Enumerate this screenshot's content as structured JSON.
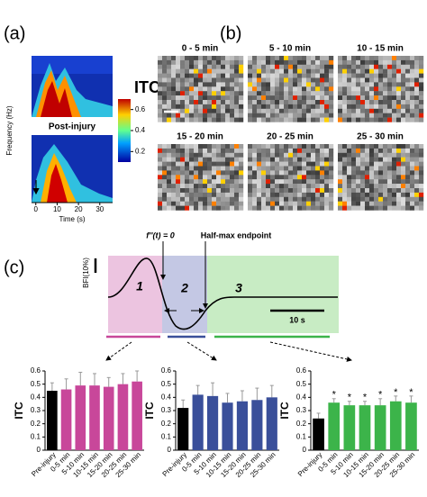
{
  "panel_labels": [
    "(a)",
    "(b)",
    "(c)"
  ],
  "panel_a": {
    "post_label": "Post-injury",
    "y_label": "Frequency (Hz)",
    "x_label": "Time (s)",
    "xlim": [
      -2,
      36
    ],
    "xticks": [
      0,
      10,
      20,
      30
    ],
    "colorbar": {
      "label": "ITC",
      "clim": [
        0.1,
        0.7
      ],
      "ticks": [
        0.2,
        0.4,
        0.6
      ]
    }
  },
  "panel_b": {
    "titles": [
      "0 - 5 min",
      "5 - 10 min",
      "10 - 15 min",
      "15 - 20 min",
      "20 - 25 min",
      "25 - 30 min"
    ]
  },
  "panel_c": {
    "inflection_label": "f''(t) = 0",
    "endpoint_label": "Half-max endpoint",
    "y_label": "BFI(10%)",
    "phases": [
      "1",
      "2",
      "3"
    ],
    "scale_label": "10 s"
  },
  "chart_data": [
    {
      "type": "bar",
      "y_label": "ITC",
      "categories": [
        "Pre-injury",
        "0-5 min",
        "5-10 min",
        "10-15 min",
        "15-20 min",
        "20-25 min",
        "25-30 min"
      ],
      "values": [
        0.45,
        0.46,
        0.49,
        0.49,
        0.48,
        0.5,
        0.52
      ],
      "errors": [
        0.06,
        0.08,
        0.1,
        0.09,
        0.07,
        0.08,
        0.08
      ],
      "colors": [
        "#000000",
        "#c8479a",
        "#c8479a",
        "#c8479a",
        "#c8479a",
        "#c8479a",
        "#c8479a"
      ],
      "ylim": [
        0,
        0.6
      ],
      "yticks": [
        0,
        0.1,
        0.2,
        0.3,
        0.4,
        0.5,
        0.6
      ]
    },
    {
      "type": "bar",
      "y_label": "ITC",
      "categories": [
        "Pre-injury",
        "0-5 min",
        "5-10 min",
        "10-15 min",
        "15-20 min",
        "20-25 min",
        "25-30 min"
      ],
      "values": [
        0.32,
        0.42,
        0.41,
        0.36,
        0.37,
        0.38,
        0.4
      ],
      "errors": [
        0.06,
        0.07,
        0.1,
        0.07,
        0.08,
        0.09,
        0.09
      ],
      "colors": [
        "#000000",
        "#3a4f9a",
        "#3a4f9a",
        "#3a4f9a",
        "#3a4f9a",
        "#3a4f9a",
        "#3a4f9a"
      ],
      "ylim": [
        0,
        0.6
      ],
      "yticks": [
        0,
        0.1,
        0.2,
        0.3,
        0.4,
        0.5,
        0.6
      ]
    },
    {
      "type": "bar",
      "y_label": "ITC",
      "categories": [
        "Pre-injury",
        "0-5 min",
        "5-10 min",
        "10-15 min",
        "15-20 min",
        "20-25 min",
        "25-30 min"
      ],
      "values": [
        0.24,
        0.36,
        0.34,
        0.34,
        0.34,
        0.37,
        0.36
      ],
      "errors": [
        0.04,
        0.03,
        0.03,
        0.03,
        0.05,
        0.04,
        0.05
      ],
      "colors": [
        "#000000",
        "#3cb44a",
        "#3cb44a",
        "#3cb44a",
        "#3cb44a",
        "#3cb44a",
        "#3cb44a"
      ],
      "significance_marker": "*",
      "significant": [
        false,
        true,
        true,
        true,
        true,
        true,
        true
      ],
      "ylim": [
        0,
        0.6
      ],
      "yticks": [
        0,
        0.1,
        0.2,
        0.3,
        0.4,
        0.5,
        0.6
      ]
    }
  ]
}
